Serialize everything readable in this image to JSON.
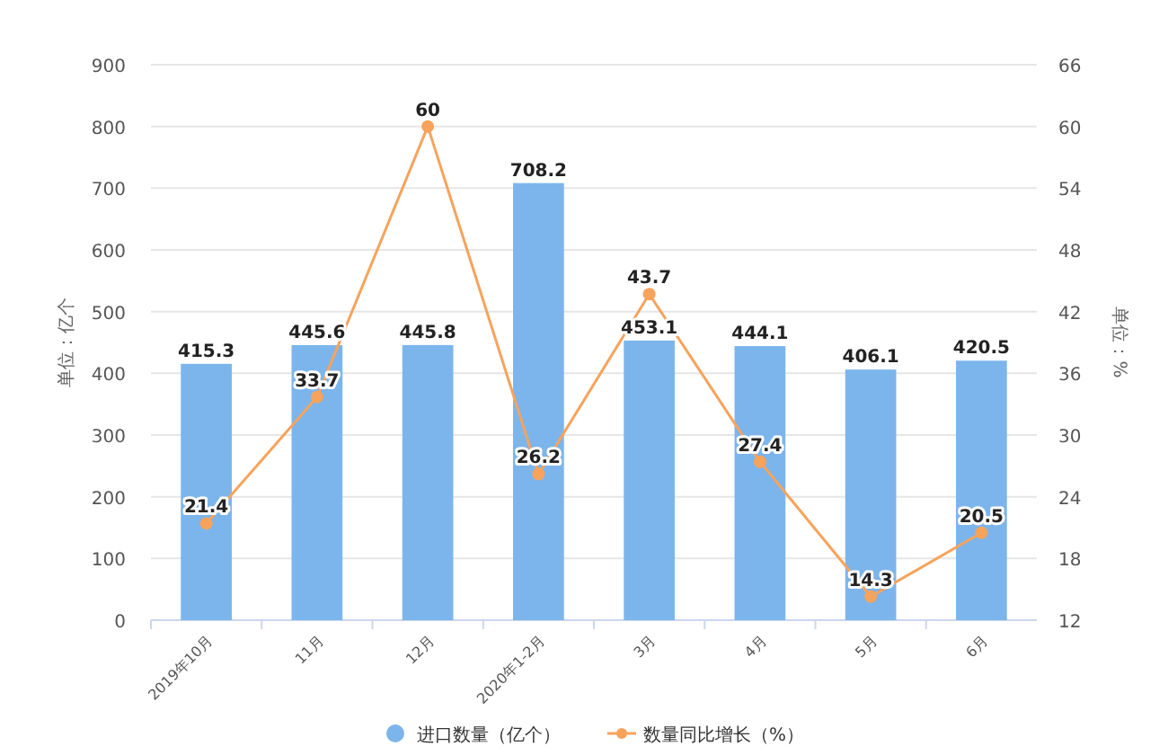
{
  "chart_data": {
    "type": "bar",
    "categories": [
      "2019年10月",
      "11月",
      "12月",
      "2020年1-2月",
      "3月",
      "4月",
      "5月",
      "6月"
    ],
    "series": [
      {
        "name": "进口数量（亿个）",
        "color": "#7cb5ec",
        "values": [
          415.3,
          445.6,
          445.8,
          708.2,
          453.1,
          444.1,
          406.1,
          420.5
        ]
      },
      {
        "name": "数量同比增长（%）",
        "type": "line",
        "axis": "y2",
        "color": "#f7a35c",
        "values": [
          21.4,
          33.7,
          60,
          26.2,
          43.7,
          27.4,
          14.3,
          20.5
        ]
      }
    ],
    "ylabel": "单位：亿个",
    "y2label": "单位：%",
    "ylim": [
      0,
      900
    ],
    "yticks": [
      0,
      100,
      200,
      300,
      400,
      500,
      600,
      700,
      800,
      900
    ],
    "y2lim": [
      12,
      66
    ],
    "y2ticks": [
      12,
      18,
      24,
      30,
      36,
      42,
      48,
      54,
      60,
      66
    ],
    "data_labels": true,
    "grid": "y",
    "legend": "bottom",
    "marker": "circle"
  }
}
